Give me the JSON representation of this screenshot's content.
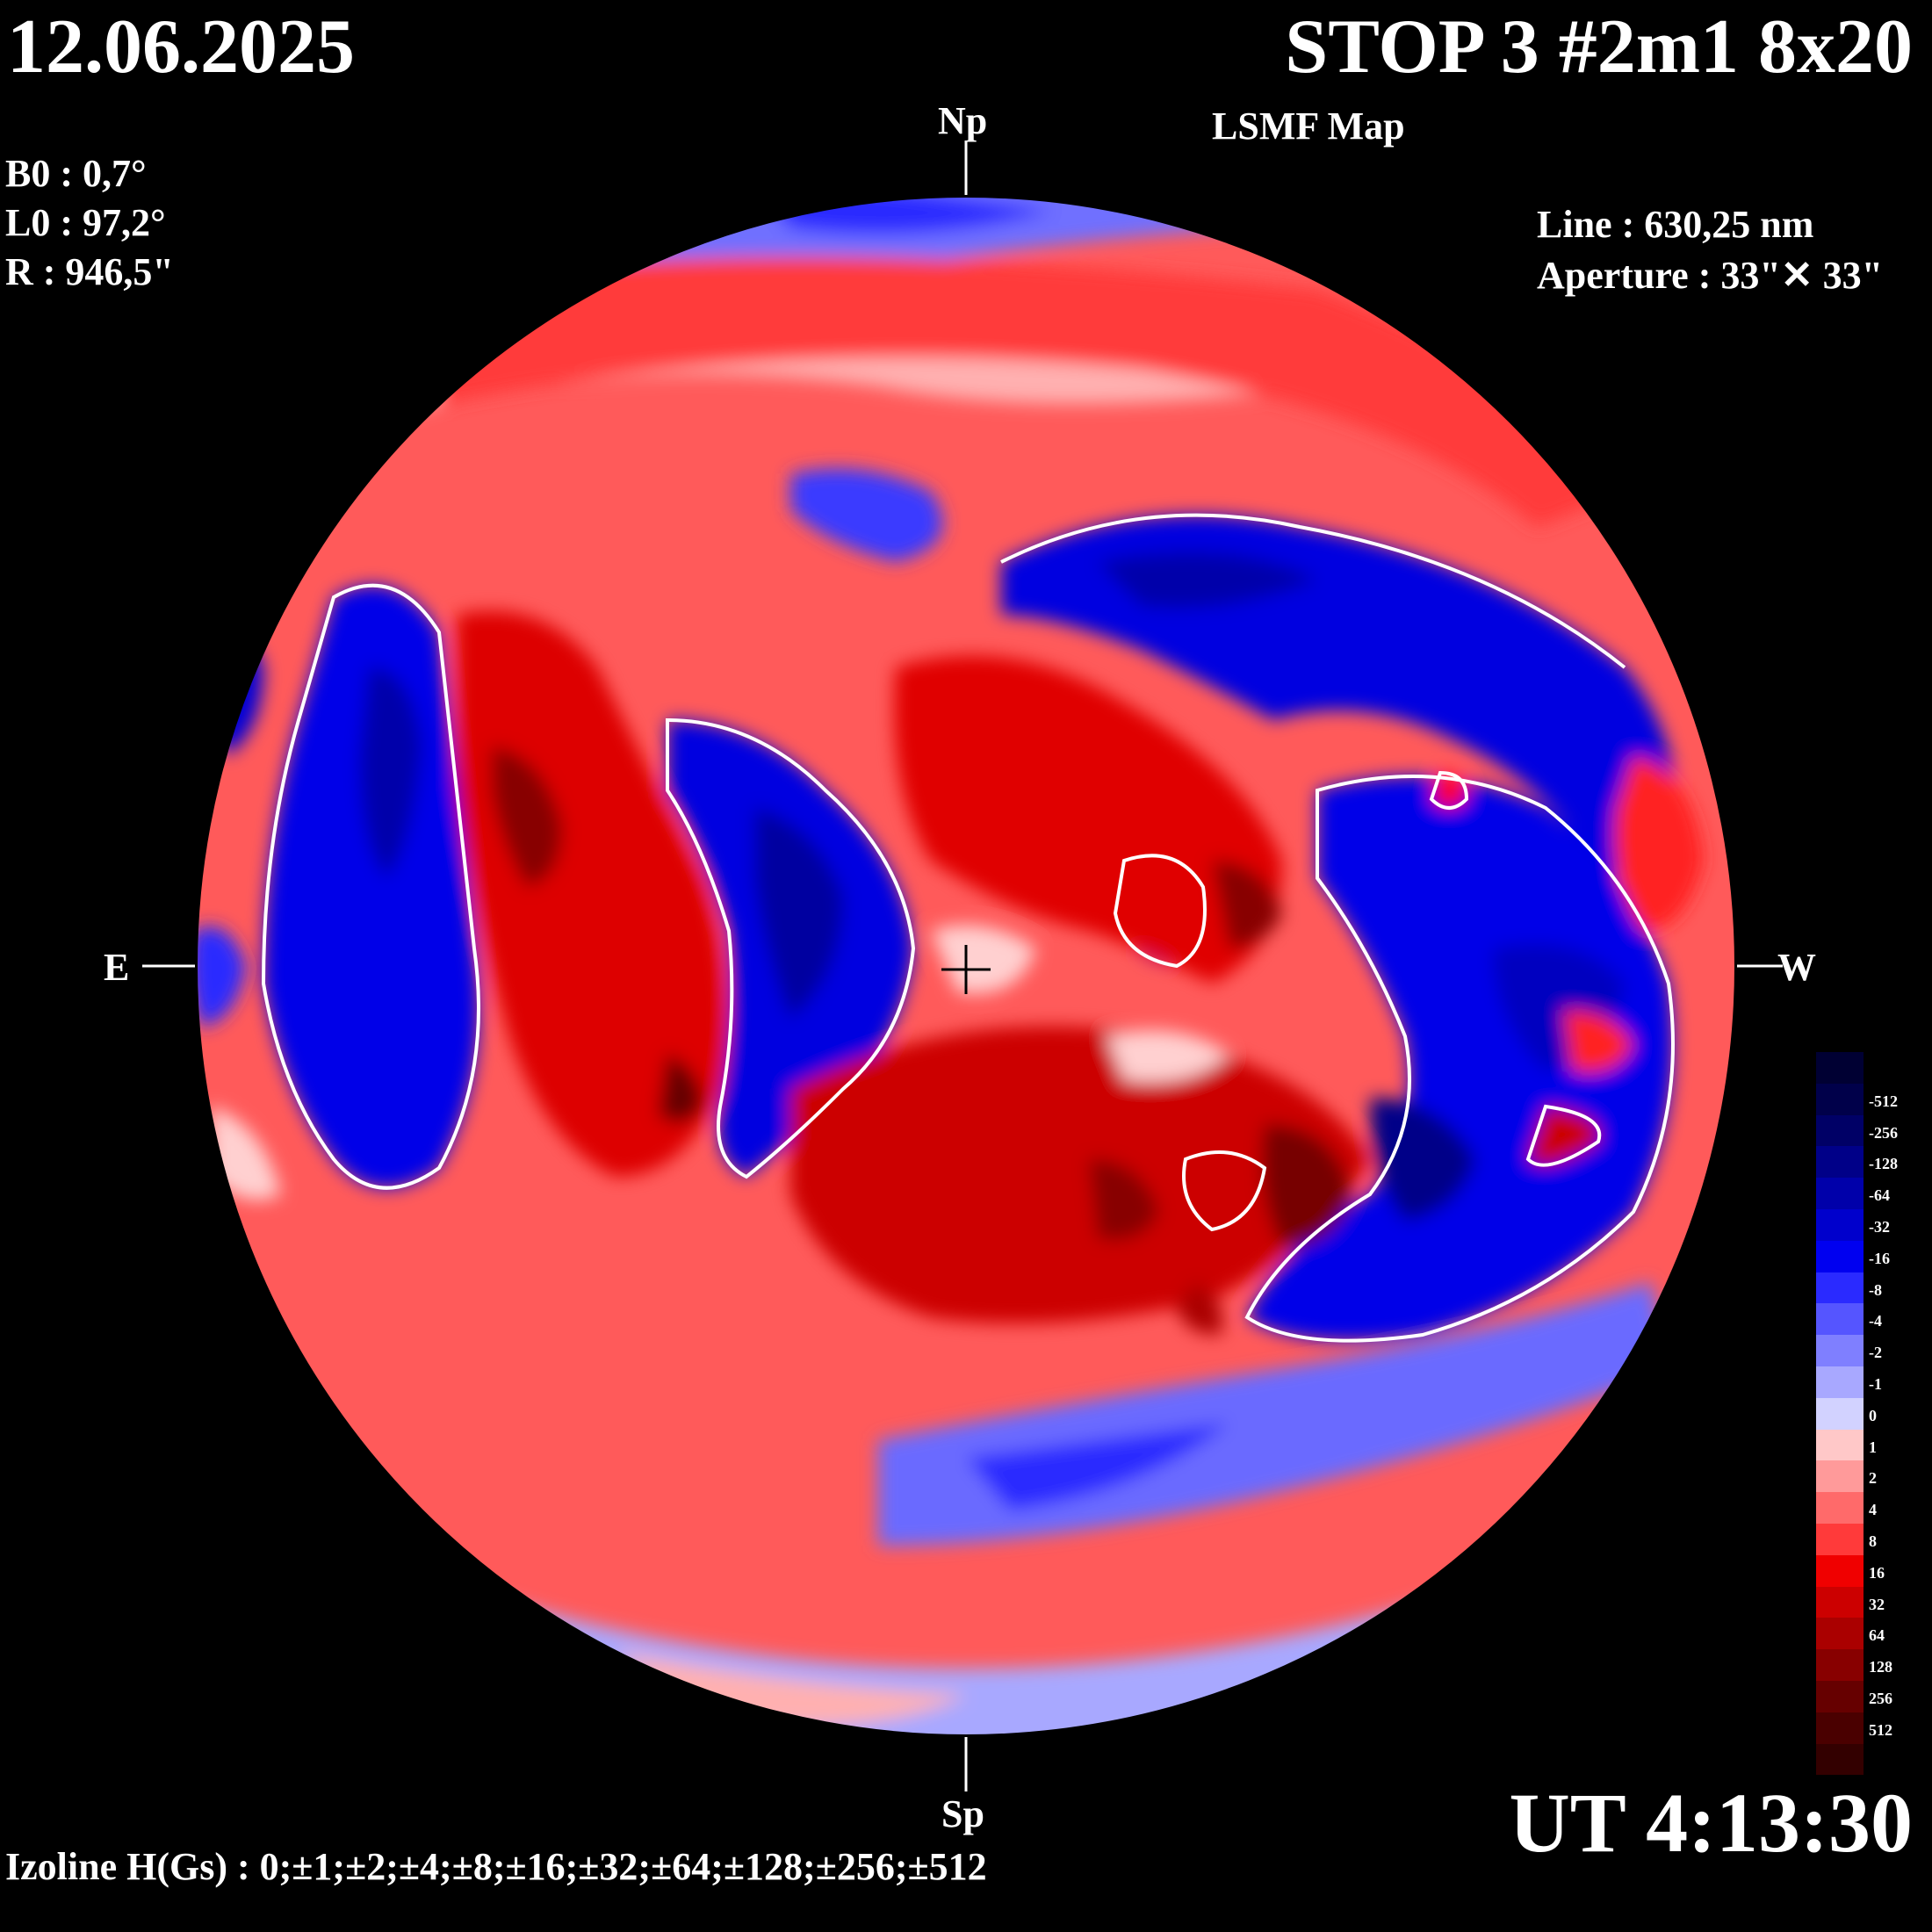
{
  "header": {
    "date": "12.06.2025",
    "title": "STOP 3 #2m1 8x20",
    "subtitle": "LSMF  Map"
  },
  "params": {
    "b0": "B0 : 0,7°",
    "l0": "L0 : 97,2°",
    "r": "R  : 946,5\""
  },
  "instrument": {
    "line": "Line :  630,25 nm",
    "aperture": "Aperture : 33\"✕ 33\""
  },
  "directions": {
    "north": "Np",
    "south": "Sp",
    "east": "E",
    "west": "W"
  },
  "footer": {
    "ut": "UT 4:13:30",
    "izoline": "Izoline H(Gs) : 0;±1;±2;±4;±8;±16;±32;±64;±128;±256;±512"
  },
  "legend": {
    "levels": [
      {
        "label": "",
        "color": "#000033"
      },
      {
        "label": "-512",
        "color": "#00004a"
      },
      {
        "label": "-256",
        "color": "#000066"
      },
      {
        "label": "-128",
        "color": "#000088"
      },
      {
        "label": "-64",
        "color": "#0000aa"
      },
      {
        "label": "-32",
        "color": "#0000cc"
      },
      {
        "label": "-16",
        "color": "#0000f0"
      },
      {
        "label": "-8",
        "color": "#2a2aff"
      },
      {
        "label": "-4",
        "color": "#5555ff"
      },
      {
        "label": "-2",
        "color": "#7f7fff"
      },
      {
        "label": "-1",
        "color": "#a8a8ff"
      },
      {
        "label": "0",
        "color": "#d2d2ff"
      },
      {
        "label": "1",
        "color": "#ffc8c8"
      },
      {
        "label": "2",
        "color": "#ff9a9a"
      },
      {
        "label": "4",
        "color": "#ff6a6a"
      },
      {
        "label": "8",
        "color": "#ff3a3a"
      },
      {
        "label": "16",
        "color": "#f00000"
      },
      {
        "label": "32",
        "color": "#cc0000"
      },
      {
        "label": "64",
        "color": "#aa0000"
      },
      {
        "label": "128",
        "color": "#880000"
      },
      {
        "label": "256",
        "color": "#660000"
      },
      {
        "label": "512",
        "color": "#4a0000"
      },
      {
        "label": "",
        "color": "#330000"
      }
    ]
  },
  "map_regions": {
    "background_polarity": "positive",
    "negative_fields": [
      "north-cap",
      "east-limb-band",
      "central-south-band",
      "west-band",
      "northwest-arc",
      "south-rim",
      "southwest-arc"
    ]
  }
}
